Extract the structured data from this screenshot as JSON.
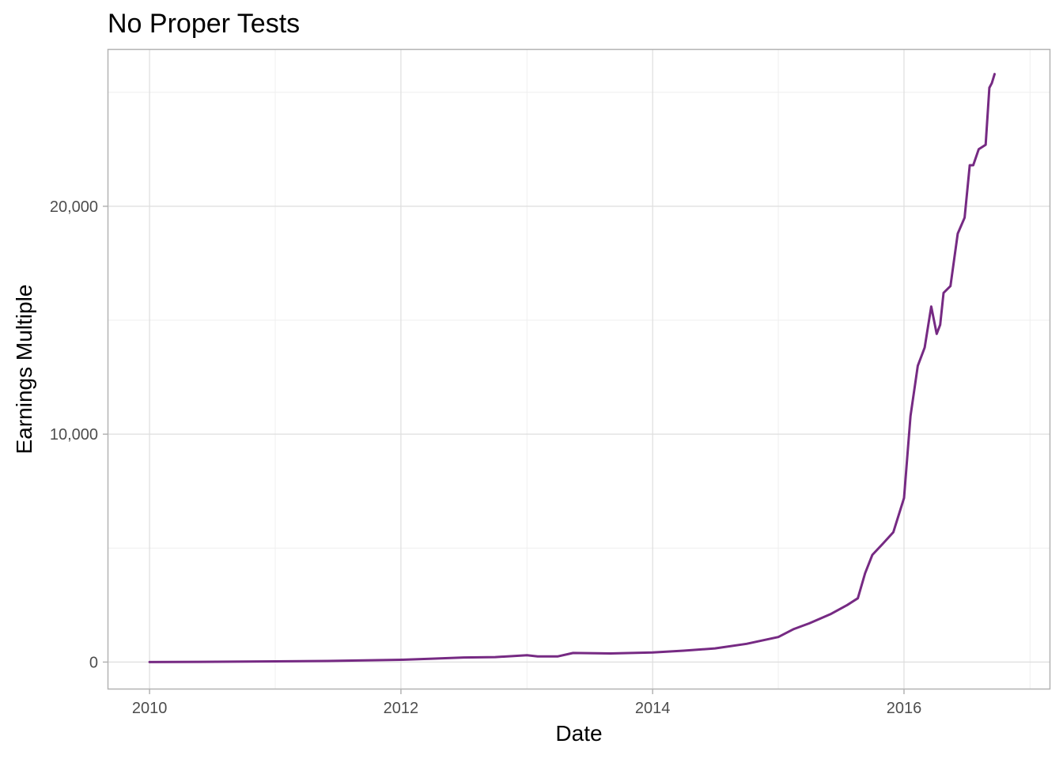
{
  "chart_data": {
    "type": "line",
    "title": "No Proper Tests",
    "xlabel": "Date",
    "ylabel": "Earnings Multiple",
    "x_axis_type": "date",
    "xlim": [
      "2009-09-01",
      "2017-03-01"
    ],
    "ylim": [
      -1200,
      26900
    ],
    "x_ticks": [
      {
        "value": "2010-01-01",
        "label": "2010"
      },
      {
        "value": "2012-01-01",
        "label": "2012"
      },
      {
        "value": "2014-01-01",
        "label": "2014"
      },
      {
        "value": "2016-01-01",
        "label": "2016"
      }
    ],
    "y_ticks": [
      {
        "value": 0,
        "label": "0"
      },
      {
        "value": 10000,
        "label": "10,000"
      },
      {
        "value": 20000,
        "label": "20,000"
      }
    ],
    "y_minor_ticks": [
      5000,
      15000,
      25000
    ],
    "x_minor_ticks": [
      "2011-01-01",
      "2013-01-01",
      "2015-01-01",
      "2017-01-01"
    ],
    "grid": true,
    "legend": "none",
    "series": [
      {
        "color": "#762a83",
        "x": [
          "2010-01-01",
          "2010-06-01",
          "2011-01-01",
          "2011-06-01",
          "2012-01-01",
          "2012-04-01",
          "2012-07-01",
          "2012-10-01",
          "2013-01-01",
          "2013-02-01",
          "2013-04-01",
          "2013-05-15",
          "2013-09-01",
          "2014-01-01",
          "2014-04-01",
          "2014-07-01",
          "2014-10-01",
          "2015-01-01",
          "2015-02-15",
          "2015-04-01",
          "2015-06-01",
          "2015-07-20",
          "2015-08-20",
          "2015-09-10",
          "2015-10-01",
          "2015-11-01",
          "2015-12-01",
          "2016-01-01",
          "2016-01-20",
          "2016-02-10",
          "2016-03-01",
          "2016-03-20",
          "2016-04-05",
          "2016-04-15",
          "2016-04-25",
          "2016-05-15",
          "2016-06-05",
          "2016-06-25",
          "2016-07-10",
          "2016-07-20",
          "2016-08-05",
          "2016-08-25",
          "2016-09-05",
          "2016-09-12",
          "2016-09-20"
        ],
        "y": [
          0,
          10,
          30,
          50,
          100,
          150,
          200,
          220,
          300,
          250,
          250,
          400,
          380,
          420,
          500,
          600,
          800,
          1100,
          1450,
          1700,
          2100,
          2500,
          2800,
          3900,
          4700,
          5200,
          5700,
          7200,
          10800,
          13000,
          13800,
          15600,
          14400,
          14800,
          16200,
          16500,
          18800,
          19500,
          21800,
          21800,
          22500,
          22700,
          25200,
          25400,
          25800
        ]
      }
    ]
  }
}
